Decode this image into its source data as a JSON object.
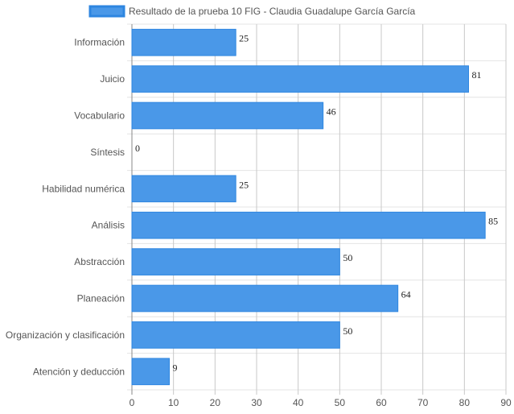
{
  "chart_data": {
    "type": "bar",
    "orientation": "horizontal",
    "categories": [
      "Información",
      "Juicio",
      "Vocabulario",
      "Síntesis",
      "Habilidad numérica",
      "Análisis",
      "Abstracción",
      "Planeación",
      "Organización y clasificación",
      "Atención y deducción"
    ],
    "series": [
      {
        "name": "Resultado de la prueba 10 FIG - Claudia Guadalupe García García",
        "values": [
          25,
          81,
          46,
          0,
          25,
          85,
          50,
          64,
          50,
          9
        ],
        "color": "#4A98E8",
        "border_color": "#2E86E0"
      }
    ],
    "xlim": [
      0,
      90
    ],
    "x_ticks": [
      0,
      10,
      20,
      30,
      40,
      50,
      60,
      70,
      80,
      90
    ],
    "grid": true,
    "legend_position": "top",
    "data_labels": true
  }
}
